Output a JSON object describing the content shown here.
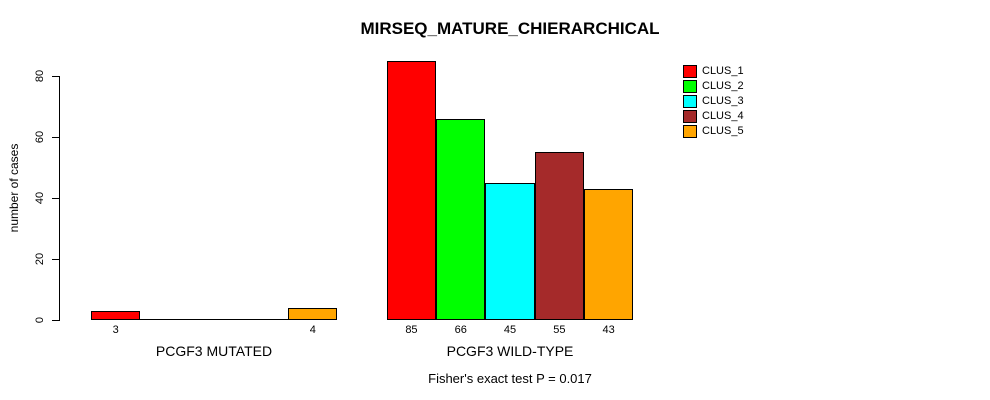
{
  "chart_data": {
    "type": "bar",
    "title": "MIRSEQ_MATURE_CHIERARCHICAL",
    "ylabel": "number of cases",
    "xlabel": "",
    "subtitle": "Fisher's exact test P = 0.017",
    "categories": [
      "PCGF3 MUTATED",
      "PCGF3 WILD-TYPE"
    ],
    "series": [
      {
        "name": "CLUS_1",
        "color": "#FF0000",
        "values": [
          3,
          85
        ]
      },
      {
        "name": "CLUS_2",
        "color": "#00FF00",
        "values": [
          0,
          66
        ]
      },
      {
        "name": "CLUS_3",
        "color": "#00FFFF",
        "values": [
          0,
          45
        ]
      },
      {
        "name": "CLUS_4",
        "color": "#A52A2A",
        "values": [
          0,
          55
        ]
      },
      {
        "name": "CLUS_5",
        "color": "#FFA500",
        "values": [
          4,
          43
        ]
      }
    ],
    "ylim": [
      0,
      85
    ],
    "yticks": [
      0,
      20,
      40,
      60,
      80
    ],
    "bar_value_labels": {
      "shown": true,
      "zero_values_hidden": true
    },
    "legend": {
      "position": "top-right",
      "entries": [
        "CLUS_1",
        "CLUS_2",
        "CLUS_3",
        "CLUS_4",
        "CLUS_5"
      ]
    },
    "grid": false,
    "axis_color": "#000000",
    "background": "#FFFFFF"
  }
}
